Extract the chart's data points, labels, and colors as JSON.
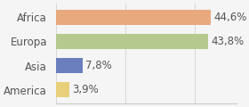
{
  "categories": [
    "Africa",
    "Europa",
    "Asia",
    "America"
  ],
  "values": [
    44.6,
    43.8,
    7.8,
    3.9
  ],
  "labels": [
    "44,6%",
    "43,8%",
    "7,8%",
    "3,9%"
  ],
  "bar_colors": [
    "#e8a97e",
    "#b5c98e",
    "#6b7fbf",
    "#e8d07a"
  ],
  "background_color": "#f5f5f5",
  "xlim": [
    0,
    52
  ],
  "bar_height": 0.62,
  "label_fontsize": 8.5,
  "tick_fontsize": 8.5
}
